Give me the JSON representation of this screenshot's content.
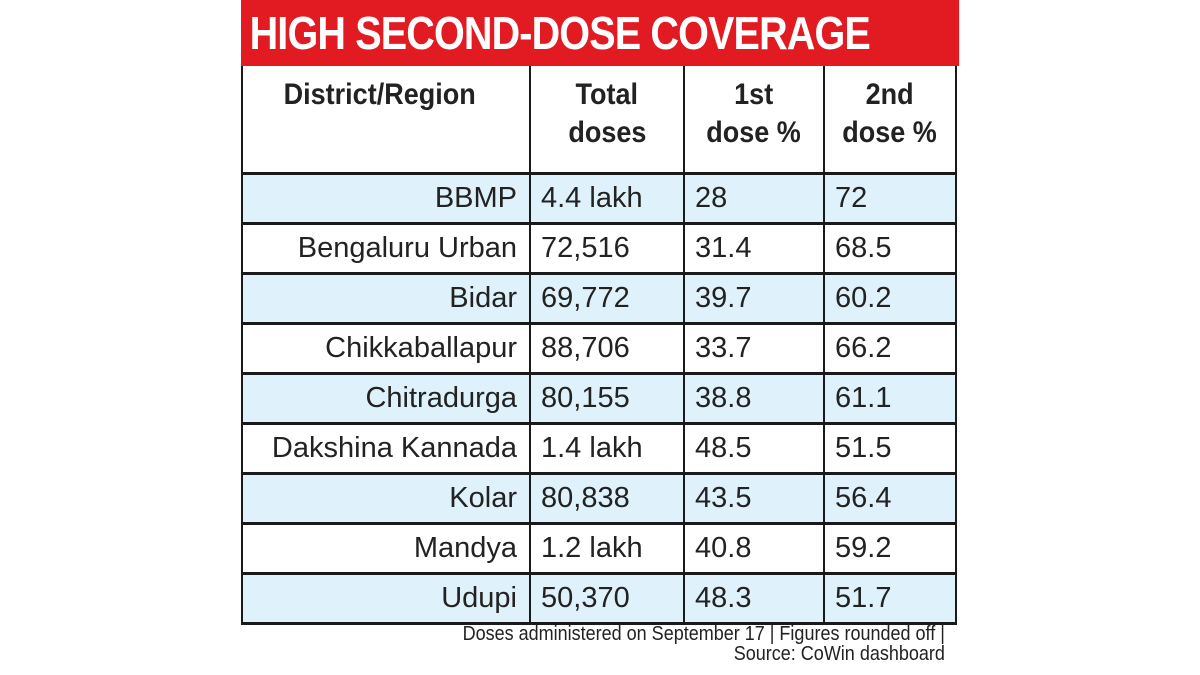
{
  "chart_data": {
    "type": "table",
    "title": "HIGH SECOND-DOSE COVERAGE",
    "columns": [
      "District/Region",
      "Total doses",
      "1st dose %",
      "2nd dose %"
    ],
    "rows": [
      [
        "BBMP",
        "4.4 lakh",
        "28",
        "72"
      ],
      [
        "Bengaluru Urban",
        "72,516",
        "31.4",
        "68.5"
      ],
      [
        "Bidar",
        "69,772",
        "39.7",
        "60.2"
      ],
      [
        "Chikkaballapur",
        "88,706",
        "33.7",
        "66.2"
      ],
      [
        "Chitradurga",
        "80,155",
        "38.8",
        "61.1"
      ],
      [
        "Dakshina Kannada",
        "1.4 lakh",
        "48.5",
        "51.5"
      ],
      [
        "Kolar",
        "80,838",
        "43.5",
        "56.4"
      ],
      [
        "Mandya",
        "1.2 lakh",
        "40.8",
        "59.2"
      ],
      [
        "Udupi",
        "50,370",
        "48.3",
        "51.7"
      ]
    ],
    "footnote_line1": "Doses administered on September 17 | Figures rounded off |",
    "footnote_line2": "Source: CoWin dashboard"
  },
  "header_lines": {
    "c0": [
      "District/Region"
    ],
    "c1": [
      "Total",
      "doses"
    ],
    "c2": [
      "1st",
      "dose %"
    ],
    "c3": [
      "2nd",
      "dose %"
    ]
  },
  "colors": {
    "title_bg": "#e21b23",
    "alt_row": "#dff1fb"
  }
}
